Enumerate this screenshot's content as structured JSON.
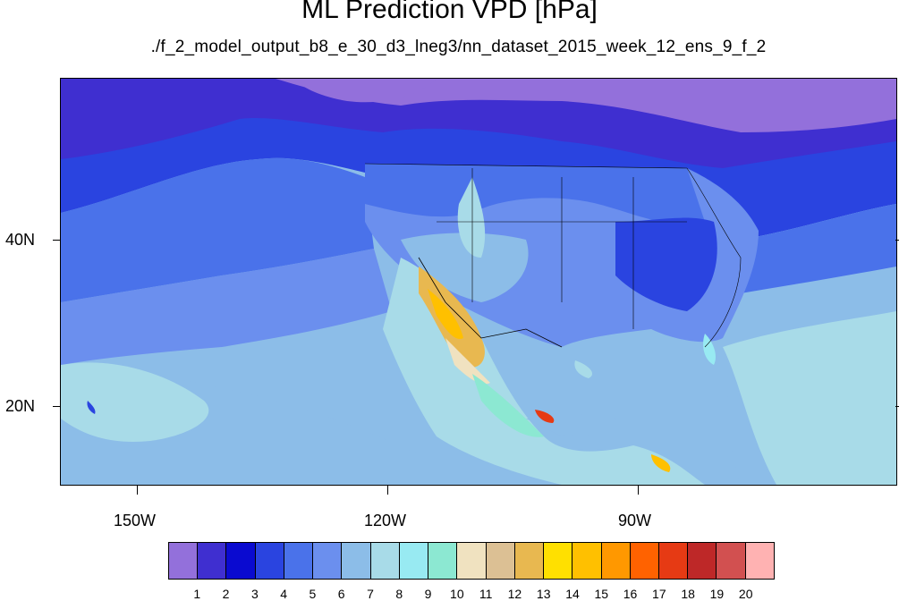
{
  "title": "ML Prediction VPD [hPa]",
  "subtitle": "./f_2_model_output_b8_e_30_d3_lneg3/nn_dataset_2015_week_12_ens_9_f_2",
  "lat_labels": [
    "40N",
    "20N"
  ],
  "lon_labels": [
    "150W",
    "120W",
    "90W"
  ],
  "colorbar": {
    "labels": [
      "1",
      "2",
      "3",
      "4",
      "5",
      "6",
      "7",
      "8",
      "9",
      "10",
      "11",
      "12",
      "13",
      "14",
      "15",
      "16",
      "17",
      "18",
      "19",
      "20"
    ],
    "colors": [
      "#9370db",
      "#3f2fd0",
      "#0a0ad0",
      "#2a44e0",
      "#4a72ea",
      "#6b8fee",
      "#8cbde8",
      "#a8dbe8",
      "#98eaf2",
      "#8ce8d2",
      "#f0e2c0",
      "#dcc094",
      "#e8b850",
      "#ffe000",
      "#ffc000",
      "#ff9800",
      "#ff6200",
      "#e63a14",
      "#be2828",
      "#d25050",
      "#ffb2b2"
    ]
  }
}
